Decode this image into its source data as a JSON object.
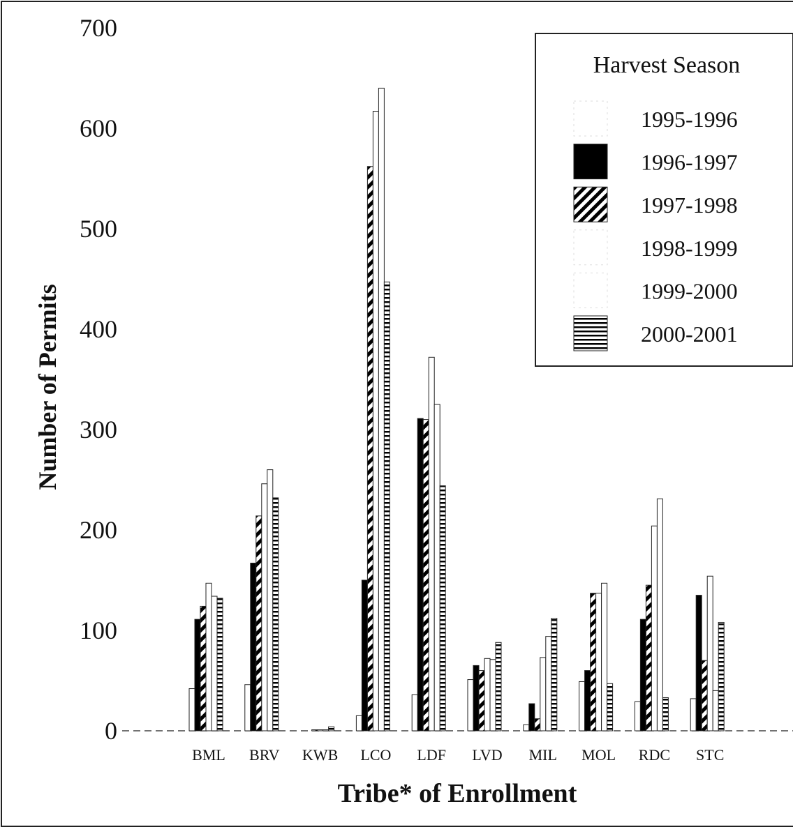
{
  "chart_data": {
    "type": "bar",
    "ylabel": "Number of Permits",
    "xlabel": "Tribe* of Enrollment",
    "legend_title": "Harvest Season",
    "legend": "upper right",
    "categories": [
      "BML",
      "BRV",
      "KWB",
      "LCO",
      "LDF",
      "LVD",
      "MIL",
      "MOL",
      "RDC",
      "STC"
    ],
    "ylim": [
      0,
      700
    ],
    "yticks": [
      0,
      100,
      200,
      300,
      400,
      500,
      600,
      700
    ],
    "series": [
      {
        "name": "1995-1996",
        "color": "#ffffff",
        "pattern": "plain",
        "values": [
          42,
          46,
          0,
          15,
          36,
          51,
          6,
          49,
          29,
          32
        ]
      },
      {
        "name": "1996-1997",
        "color": "#000000",
        "pattern": "solid",
        "values": [
          111,
          167,
          0,
          150,
          311,
          65,
          27,
          60,
          111,
          135
        ]
      },
      {
        "name": "1997-1998",
        "color": "#000000",
        "pattern": "diagonal",
        "values": [
          124,
          214,
          1,
          562,
          310,
          60,
          12,
          137,
          145,
          70
        ]
      },
      {
        "name": "1998-1999",
        "color": "#ffffff",
        "pattern": "plain",
        "values": [
          147,
          246,
          1,
          617,
          372,
          72,
          73,
          137,
          204,
          154
        ]
      },
      {
        "name": "1999-2000",
        "color": "#ffffff",
        "pattern": "plain",
        "values": [
          134,
          260,
          1,
          640,
          325,
          71,
          94,
          147,
          231,
          40
        ]
      },
      {
        "name": "2000-2001",
        "color": "#000000",
        "pattern": "horizontal",
        "values": [
          132,
          232,
          4,
          447,
          244,
          88,
          112,
          47,
          33,
          108
        ]
      }
    ]
  }
}
